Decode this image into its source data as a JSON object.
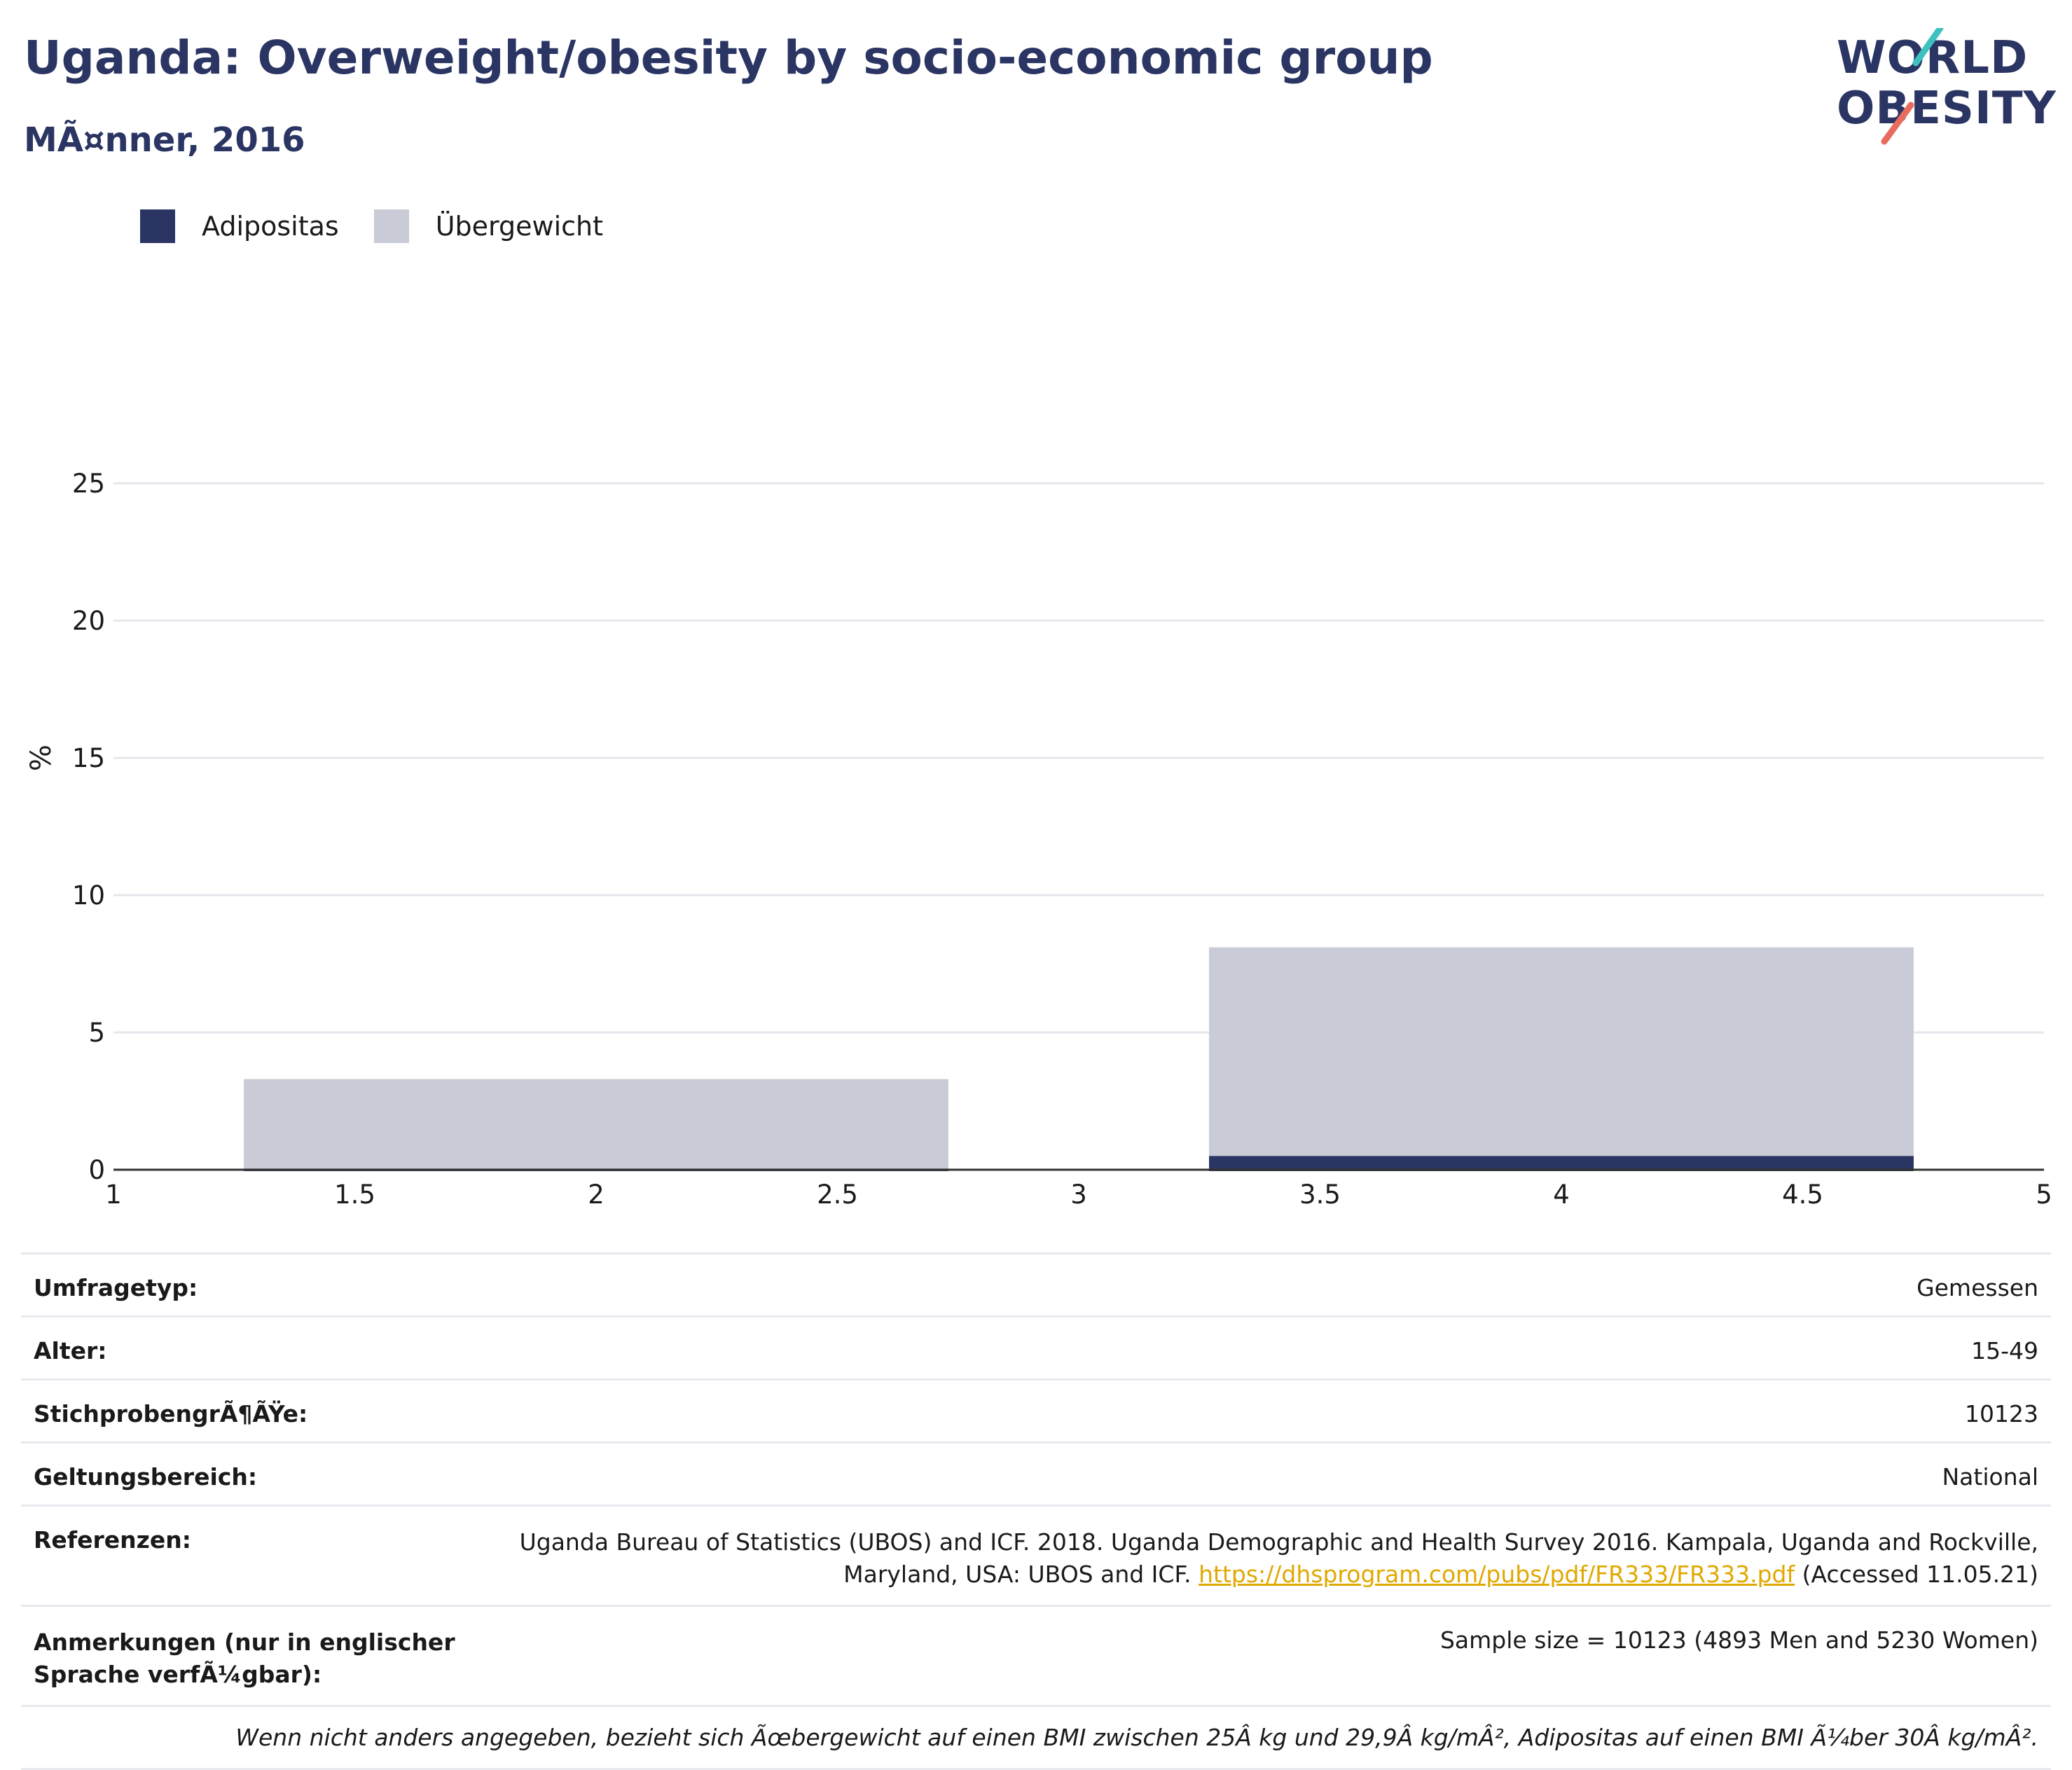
{
  "title": "Uganda: Overweight/obesity by socio-economic group",
  "subtitle": "MÃ¤nner, 2016",
  "logo": {
    "line1": "WORLD",
    "line2": "OBESITY"
  },
  "colors": {
    "obesity": "#2b3563",
    "overweight": "#c9ccd7",
    "title": "#2b3563",
    "link": "#e0a800",
    "accent_teal": "#3ec1c1",
    "accent_coral": "#e86b5e"
  },
  "legend": {
    "obesity": "Adipositas",
    "overweight": "Übergewicht"
  },
  "chart_data": {
    "type": "bar",
    "stacked": true,
    "ylabel": "%",
    "xlabel": "",
    "xlim": [
      1,
      5
    ],
    "ylim": [
      0,
      25
    ],
    "xticks": [
      "1",
      "1.5",
      "2",
      "2.5",
      "3",
      "3.5",
      "4",
      "4.5",
      "5"
    ],
    "yticks": [
      "0",
      "5",
      "10",
      "15",
      "20",
      "25"
    ],
    "grid": true,
    "legend_position": "top-left",
    "bars": [
      {
        "x_start": 1.27,
        "x_end": 2.73,
        "obesity": 0.0,
        "overweight": 3.3
      },
      {
        "x_start": 3.27,
        "x_end": 4.73,
        "obesity": 0.5,
        "overweight": 8.1
      }
    ],
    "series": [
      {
        "name": "Adipositas",
        "values": [
          0.0,
          0.5
        ]
      },
      {
        "name": "Übergewicht",
        "values": [
          3.3,
          8.1
        ]
      }
    ]
  },
  "info": {
    "survey_type": {
      "label": "Umfragetyp:",
      "value": "Gemessen"
    },
    "age": {
      "label": "Alter:",
      "value": "15-49"
    },
    "sample": {
      "label": "StichprobengrÃ¶ÃŸe:",
      "value": "10123"
    },
    "scope": {
      "label": "Geltungsbereich:",
      "value": "National"
    },
    "references": {
      "label": "Referenzen:",
      "line1": "Uganda Bureau of Statistics (UBOS) and ICF. 2018. Uganda Demographic and Health Survey 2016. Kampala, Uganda and Rockville,",
      "line2_prefix": "Maryland, USA: UBOS and ICF. ",
      "link": "https://dhsprogram.com/pubs/pdf/FR333/FR333.pdf",
      "line2_suffix": " (Accessed 11.05.21)"
    },
    "notes": {
      "label": "Anmerkungen (nur in englischer Sprache verfÃ¼gbar):",
      "value": "Sample size = 10123 (4893 Men and 5230 Women)"
    },
    "footnote": "Wenn nicht anders angegeben, bezieht sich Ãœbergewicht auf einen BMI zwischen 25Â kg und 29,9Â kg/mÂ², Adipositas auf einen BMI Ã¼ber 30Â kg/mÂ²."
  }
}
